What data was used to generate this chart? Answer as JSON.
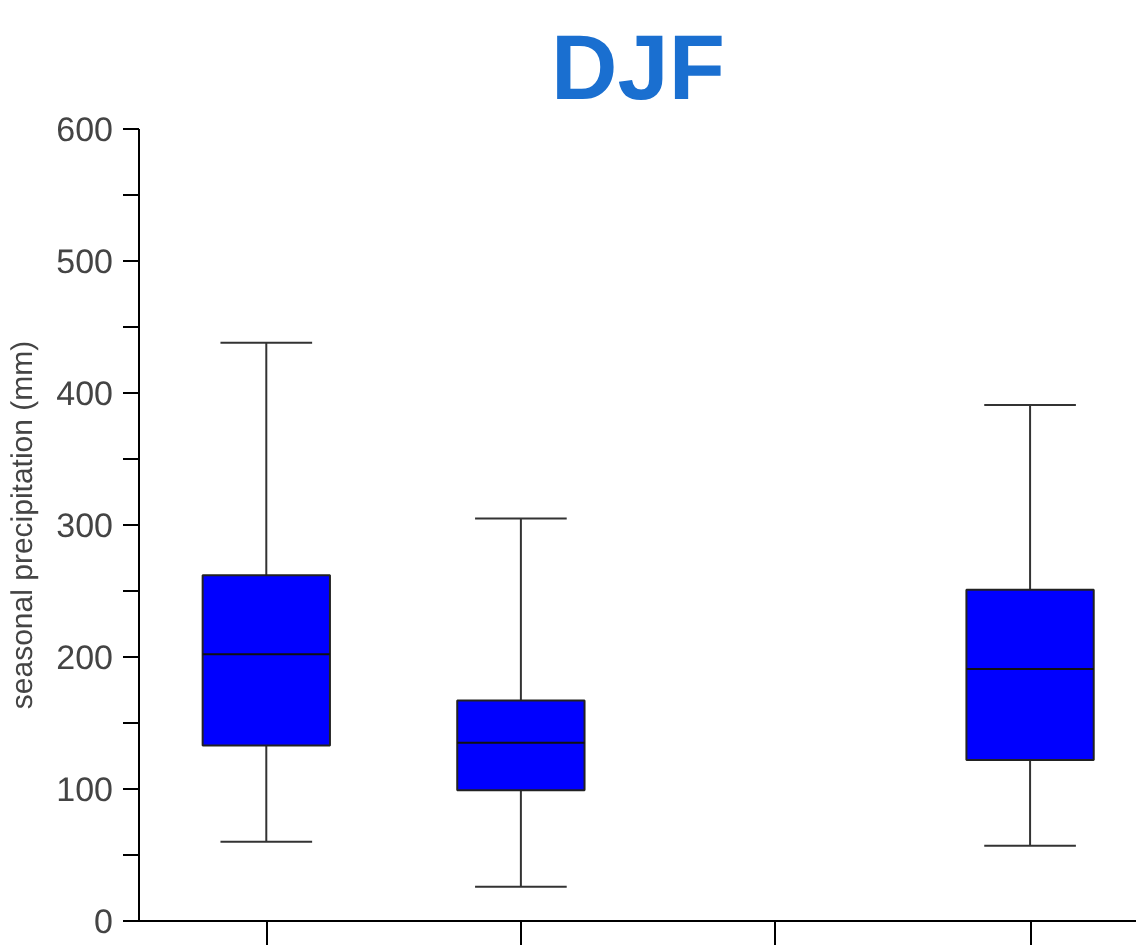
{
  "chart_data": {
    "type": "box",
    "title": "DJF",
    "ylabel": "seasonal precipitation (mm)",
    "categories": [
      null,
      null,
      null,
      null
    ],
    "series": [
      {
        "color": "#0000ff",
        "boxes": [
          {
            "low": 60,
            "q1": 133,
            "median": 202,
            "q3": 262,
            "high": 438
          },
          {
            "low": 26,
            "q1": 99,
            "median": 135,
            "q3": 167,
            "high": 305
          },
          null,
          {
            "low": 57,
            "q1": 122,
            "median": 191,
            "q3": 251,
            "high": 391
          }
        ]
      }
    ],
    "ylim": [
      0,
      600
    ],
    "yticks": [
      0,
      {
        "value": 50,
        "label": null
      },
      100,
      {
        "value": 150,
        "label": null
      },
      200,
      {
        "value": 250,
        "label": null
      },
      300,
      {
        "value": 350,
        "label": null
      },
      400,
      {
        "value": 450,
        "label": null
      },
      500,
      {
        "value": 550,
        "label": null
      },
      600
    ],
    "tick_labels": "y",
    "grid": false
  }
}
